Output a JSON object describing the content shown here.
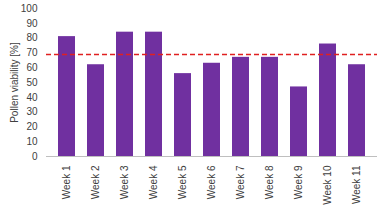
{
  "chart_data": {
    "type": "bar",
    "categories": [
      "Week 1",
      "Week 2",
      "Week 3",
      "Week 4",
      "Week 5",
      "Week 6",
      "Week 7",
      "Week 8",
      "Week 9",
      "Week 10",
      "Week 11"
    ],
    "values": [
      81,
      62,
      84,
      84,
      56,
      63,
      67,
      67,
      47,
      76,
      62
    ],
    "color": "#7030a0",
    "ylabel": "Pollen viability [%]",
    "ylim": [
      0,
      100
    ],
    "yticks": [
      0,
      10,
      20,
      30,
      40,
      50,
      60,
      70,
      80,
      90,
      100
    ],
    "grid": false,
    "reference_line": {
      "value": 69,
      "color": "#e02020",
      "line_style": "dashed"
    }
  }
}
